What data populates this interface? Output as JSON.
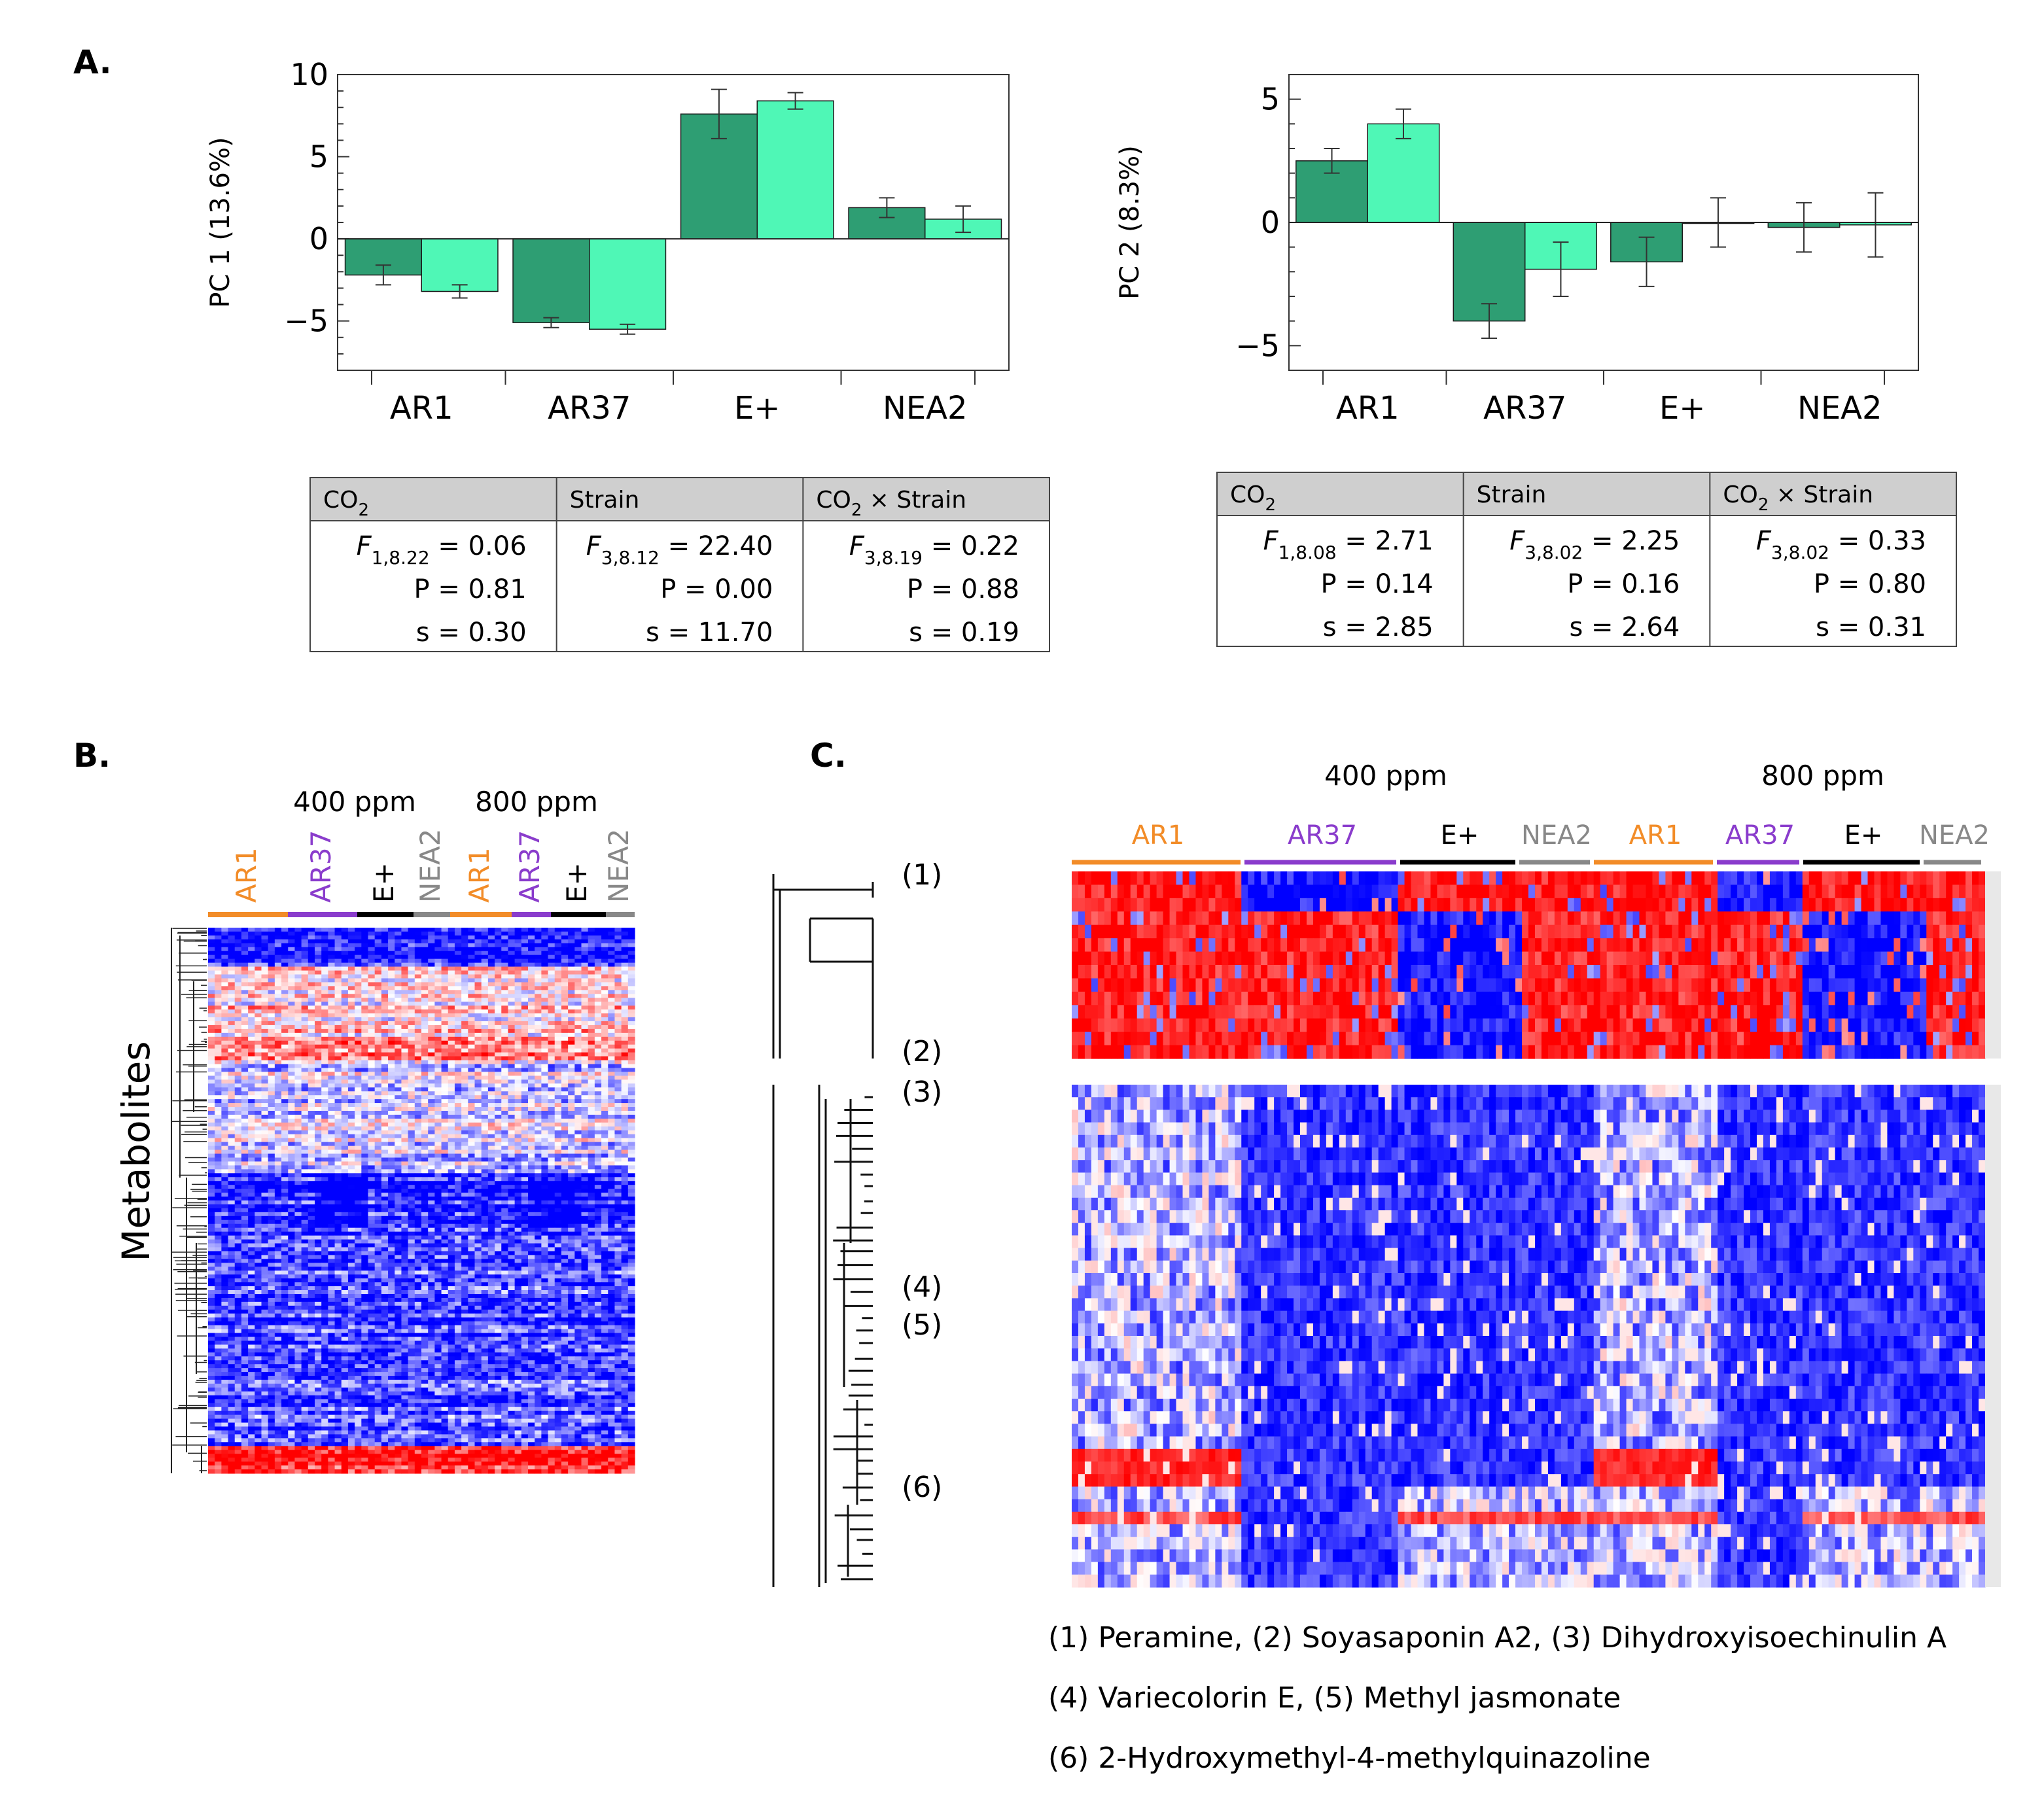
{
  "panels": {
    "a": "A.",
    "b": "B.",
    "c": "C."
  },
  "colors": {
    "co2_400": "#2e9e73",
    "co2_800": "#4ff7b6",
    "ar1": "#f28c28",
    "ar37": "#8a3ccc",
    "e_plus": "#000000",
    "nea2": "#888888",
    "heat_high": "#ff0000",
    "heat_mid": "#ffffff",
    "heat_low": "#0000ff",
    "table_header": "#cfcfcf"
  },
  "chart_data": [
    {
      "type": "bar",
      "name": "PC1",
      "categories": [
        "AR1",
        "AR37",
        "E+",
        "NEA2"
      ],
      "series": [
        {
          "name": "400 ppm",
          "values": [
            -2.2,
            -5.1,
            7.6,
            1.9
          ],
          "errors": [
            0.6,
            0.3,
            1.5,
            0.6
          ]
        },
        {
          "name": "800 ppm",
          "values": [
            -3.2,
            -5.5,
            8.4,
            1.2
          ],
          "errors": [
            0.4,
            0.3,
            0.5,
            0.8
          ]
        }
      ],
      "ylabel": "PC 1 (13.6%)",
      "ylim": [
        -8,
        10
      ],
      "yticks": [
        -5,
        0,
        5,
        10
      ]
    },
    {
      "type": "bar",
      "name": "PC2",
      "categories": [
        "AR1",
        "AR37",
        "E+",
        "NEA2"
      ],
      "series": [
        {
          "name": "400 ppm",
          "values": [
            2.5,
            -4.0,
            -1.6,
            -0.2
          ],
          "errors": [
            0.5,
            0.7,
            1.0,
            1.0
          ]
        },
        {
          "name": "800 ppm",
          "values": [
            4.0,
            -1.9,
            0.0,
            -0.1
          ],
          "errors": [
            0.6,
            1.1,
            1.0,
            1.3
          ]
        }
      ],
      "ylabel": "PC 2 (8.3%)",
      "ylim": [
        -6,
        6
      ],
      "yticks": [
        -5,
        0,
        5
      ]
    }
  ],
  "tables": [
    {
      "headers": [
        {
          "main": "CO",
          "sub": "2",
          "rest": ""
        },
        {
          "main": "Strain",
          "sub": "",
          "rest": ""
        },
        {
          "main": "CO",
          "sub": "2",
          "rest": " × Strain"
        }
      ],
      "cells": [
        {
          "f_sub": "1,8.22",
          "f": "= 0.06",
          "p": "P = 0.81",
          "s": "s = 0.30"
        },
        {
          "f_sub": "3,8.12",
          "f": "= 22.40",
          "p": "P = 0.00",
          "s": "s = 11.70"
        },
        {
          "f_sub": "3,8.19",
          "f": "= 0.22",
          "p": "P = 0.88",
          "s": "s = 0.19"
        }
      ]
    },
    {
      "headers": [
        {
          "main": "CO",
          "sub": "2",
          "rest": ""
        },
        {
          "main": "Strain",
          "sub": "",
          "rest": ""
        },
        {
          "main": "CO",
          "sub": "2",
          "rest": " × Strain"
        }
      ],
      "cells": [
        {
          "f_sub": "1,8.08",
          "f": "= 2.71",
          "p": "P = 0.14",
          "s": "s = 2.85"
        },
        {
          "f_sub": "3,8.02",
          "f": "= 2.25",
          "p": "P = 0.16",
          "s": "s = 2.64"
        },
        {
          "f_sub": "3,8.02",
          "f": "= 0.33",
          "p": "P = 0.80",
          "s": "s = 0.31"
        }
      ]
    }
  ],
  "heatmap_b": {
    "ppm_labels": [
      "400 ppm",
      "800 ppm"
    ],
    "groups": [
      "AR1",
      "AR37",
      "E+",
      "NEA2",
      "AR1",
      "AR37",
      "E+",
      "NEA2"
    ],
    "ylabel": "Metabolites"
  },
  "heatmap_c": {
    "ppm_labels": [
      "400 ppm",
      "800 ppm"
    ],
    "groups": [
      "AR1",
      "AR37",
      "E+",
      "NEA2",
      "AR1",
      "AR37",
      "E+",
      "NEA2"
    ],
    "markers": [
      "(1)",
      "(2)",
      "(3)",
      "(4)",
      "(5)",
      "(6)"
    ],
    "legend_lines": [
      "(1) Peramine, (2) Soyasaponin A2, (3) Dihydroxyisoechinulin A",
      "(4) Variecolorin E, (5) Methyl jasmonate",
      "(6) 2-Hydroxymethyl-4-methylquinazoline"
    ]
  }
}
